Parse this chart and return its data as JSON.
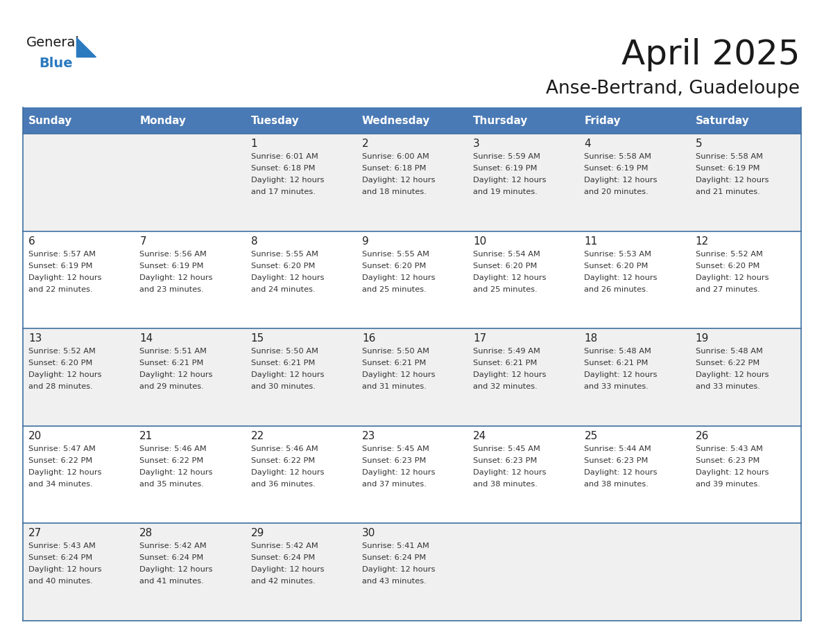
{
  "title": "April 2025",
  "subtitle": "Anse-Bertrand, Guadeloupe",
  "days_of_week": [
    "Sunday",
    "Monday",
    "Tuesday",
    "Wednesday",
    "Thursday",
    "Friday",
    "Saturday"
  ],
  "header_bg": "#4a7ab5",
  "header_text_color": "#ffffff",
  "cell_bg_even": "#f0f0f0",
  "cell_bg_odd": "#ffffff",
  "cell_text_color": "#333333",
  "day_num_color": "#222222",
  "grid_line_color": "#3d6fa0",
  "title_color": "#1a1a1a",
  "subtitle_color": "#1a1a1a",
  "logo_dark_color": "#1a1a1a",
  "logo_blue_color": "#2b7abf",
  "calendar_data": [
    [
      null,
      null,
      {
        "day": 1,
        "sunrise": "6:01 AM",
        "sunset": "6:18 PM",
        "daylight_min": "17"
      },
      {
        "day": 2,
        "sunrise": "6:00 AM",
        "sunset": "6:18 PM",
        "daylight_min": "18"
      },
      {
        "day": 3,
        "sunrise": "5:59 AM",
        "sunset": "6:19 PM",
        "daylight_min": "19"
      },
      {
        "day": 4,
        "sunrise": "5:58 AM",
        "sunset": "6:19 PM",
        "daylight_min": "20"
      },
      {
        "day": 5,
        "sunrise": "5:58 AM",
        "sunset": "6:19 PM",
        "daylight_min": "21"
      }
    ],
    [
      {
        "day": 6,
        "sunrise": "5:57 AM",
        "sunset": "6:19 PM",
        "daylight_min": "22"
      },
      {
        "day": 7,
        "sunrise": "5:56 AM",
        "sunset": "6:19 PM",
        "daylight_min": "23"
      },
      {
        "day": 8,
        "sunrise": "5:55 AM",
        "sunset": "6:20 PM",
        "daylight_min": "24"
      },
      {
        "day": 9,
        "sunrise": "5:55 AM",
        "sunset": "6:20 PM",
        "daylight_min": "25"
      },
      {
        "day": 10,
        "sunrise": "5:54 AM",
        "sunset": "6:20 PM",
        "daylight_min": "25"
      },
      {
        "day": 11,
        "sunrise": "5:53 AM",
        "sunset": "6:20 PM",
        "daylight_min": "26"
      },
      {
        "day": 12,
        "sunrise": "5:52 AM",
        "sunset": "6:20 PM",
        "daylight_min": "27"
      }
    ],
    [
      {
        "day": 13,
        "sunrise": "5:52 AM",
        "sunset": "6:20 PM",
        "daylight_min": "28"
      },
      {
        "day": 14,
        "sunrise": "5:51 AM",
        "sunset": "6:21 PM",
        "daylight_min": "29"
      },
      {
        "day": 15,
        "sunrise": "5:50 AM",
        "sunset": "6:21 PM",
        "daylight_min": "30"
      },
      {
        "day": 16,
        "sunrise": "5:50 AM",
        "sunset": "6:21 PM",
        "daylight_min": "31"
      },
      {
        "day": 17,
        "sunrise": "5:49 AM",
        "sunset": "6:21 PM",
        "daylight_min": "32"
      },
      {
        "day": 18,
        "sunrise": "5:48 AM",
        "sunset": "6:21 PM",
        "daylight_min": "33"
      },
      {
        "day": 19,
        "sunrise": "5:48 AM",
        "sunset": "6:22 PM",
        "daylight_min": "33"
      }
    ],
    [
      {
        "day": 20,
        "sunrise": "5:47 AM",
        "sunset": "6:22 PM",
        "daylight_min": "34"
      },
      {
        "day": 21,
        "sunrise": "5:46 AM",
        "sunset": "6:22 PM",
        "daylight_min": "35"
      },
      {
        "day": 22,
        "sunrise": "5:46 AM",
        "sunset": "6:22 PM",
        "daylight_min": "36"
      },
      {
        "day": 23,
        "sunrise": "5:45 AM",
        "sunset": "6:23 PM",
        "daylight_min": "37"
      },
      {
        "day": 24,
        "sunrise": "5:45 AM",
        "sunset": "6:23 PM",
        "daylight_min": "38"
      },
      {
        "day": 25,
        "sunrise": "5:44 AM",
        "sunset": "6:23 PM",
        "daylight_min": "38"
      },
      {
        "day": 26,
        "sunrise": "5:43 AM",
        "sunset": "6:23 PM",
        "daylight_min": "39"
      }
    ],
    [
      {
        "day": 27,
        "sunrise": "5:43 AM",
        "sunset": "6:24 PM",
        "daylight_min": "40"
      },
      {
        "day": 28,
        "sunrise": "5:42 AM",
        "sunset": "6:24 PM",
        "daylight_min": "41"
      },
      {
        "day": 29,
        "sunrise": "5:42 AM",
        "sunset": "6:24 PM",
        "daylight_min": "42"
      },
      {
        "day": 30,
        "sunrise": "5:41 AM",
        "sunset": "6:24 PM",
        "daylight_min": "43"
      },
      null,
      null,
      null
    ]
  ]
}
